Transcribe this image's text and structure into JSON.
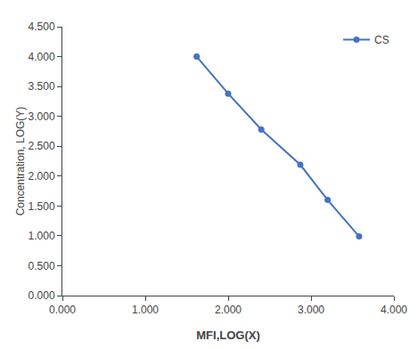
{
  "chart_data": {
    "type": "line",
    "x": [
      1.62,
      2.0,
      2.4,
      2.87,
      3.2,
      3.58
    ],
    "series": [
      {
        "name": "CS",
        "color": "#4472C4",
        "marker": "circle",
        "line_style": "solid",
        "values": [
          4.0,
          3.38,
          2.78,
          2.19,
          1.6,
          0.99
        ]
      }
    ],
    "xlabel": "MFI,LOG(X)",
    "ylabel": "Concentration, LOG(Y)",
    "xlim": [
      0.0,
      4.0
    ],
    "ylim": [
      0.0,
      4.5
    ],
    "xticks": [
      {
        "value": 0,
        "label": "0.000"
      },
      {
        "value": 1,
        "label": "1.000"
      },
      {
        "value": 2,
        "label": "2.000"
      },
      {
        "value": 3,
        "label": "3.000"
      },
      {
        "value": 4,
        "label": "4.000"
      }
    ],
    "yticks": [
      {
        "value": 0,
        "label": "0.000"
      },
      {
        "value": 0.5,
        "label": "0.500"
      },
      {
        "value": 1,
        "label": "1.000"
      },
      {
        "value": 1.5,
        "label": "1.500"
      },
      {
        "value": 2,
        "label": "2.000"
      },
      {
        "value": 2.5,
        "label": "2.500"
      },
      {
        "value": 3,
        "label": "3.000"
      },
      {
        "value": 3.5,
        "label": "3.500"
      },
      {
        "value": 4,
        "label": "4.000"
      },
      {
        "value": 4.5,
        "label": "4.500"
      }
    ],
    "grid": false,
    "legend": "upper right"
  }
}
